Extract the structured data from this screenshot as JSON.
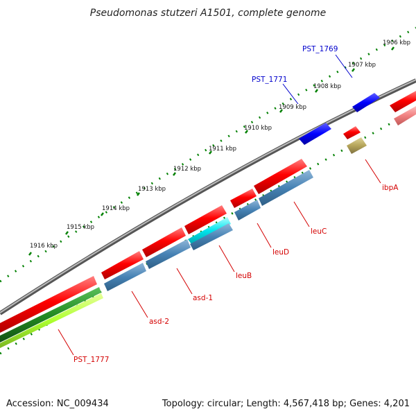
{
  "title": "Pseudomonas stutzeri A1501, complete genome",
  "ticks": [
    "1906 kbp",
    "1907 kbp",
    "1908 kbp",
    "1909 kbp",
    "1910 kbp",
    "1911 kbp",
    "1912 kbp",
    "1913 kbp",
    "1914 kbp",
    "1915 kbp",
    "1916 kbp"
  ],
  "gene_labels": {
    "pst1769": "PST_1769",
    "pst1771": "PST_1771",
    "ibpA": "ibpA",
    "leuC": "leuC",
    "leuD": "leuD",
    "leuB": "leuB",
    "asd1": "asd-1",
    "asd2": "asd-2",
    "pst1777": "PST_1777"
  },
  "colors": {
    "forward_cds": "#ff0000",
    "reverse_cds": "#4682b4",
    "blue_gene": "#0000ff",
    "highlight": "#00e5ee",
    "tan": "#b5a55a",
    "pink": "#f08080",
    "backbone": "#808080",
    "dark_green": "#228b22",
    "lime": "#adff2f",
    "tick_green": "#008000"
  },
  "footer": {
    "accession": "Accession: NC_009434",
    "summary": "Topology: circular; Length: 4,567,418 bp; Genes: 4,201"
  }
}
